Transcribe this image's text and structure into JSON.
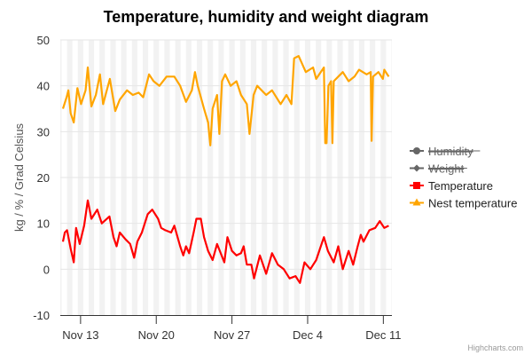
{
  "chart_data": {
    "type": "line",
    "title": "Temperature, humidity and weight diagram",
    "ylabel": "kg / % / Grad Celsius",
    "ylim": [
      -10,
      50
    ],
    "yticks": [
      "-10",
      "0",
      "10",
      "20",
      "30",
      "40",
      "50"
    ],
    "xlim": [
      "Nov 11 03:00",
      "Dec 11 19:00"
    ],
    "xticks": [
      "Nov 13",
      "Nov 20",
      "Nov 27",
      "Dec 4",
      "Dec 11"
    ],
    "grid": true,
    "plot_bands": {
      "daily_from": "18:00",
      "daily_to": "06:00",
      "color": "#f2f2f2"
    },
    "legend_position": "right",
    "credits": "Highcharts.com",
    "series": [
      {
        "name": "Humidity",
        "visible": false,
        "color": "#666666",
        "marker": "circle",
        "points": []
      },
      {
        "name": "Weight",
        "visible": false,
        "color": "#666666",
        "marker": "diamond",
        "points": []
      },
      {
        "name": "Temperature",
        "visible": true,
        "color": "#ff0000",
        "marker": "square",
        "points": [
          [
            "Nov 11 09:00",
            6
          ],
          [
            "Nov 11 13:00",
            8
          ],
          [
            "Nov 11 18:00",
            8.5
          ],
          [
            "Nov 12 02:00",
            4.5
          ],
          [
            "Nov 12 09:00",
            1.5
          ],
          [
            "Nov 12 14:00",
            9
          ],
          [
            "Nov 12 22:00",
            5.5
          ],
          [
            "Nov 13 08:00",
            9.5
          ],
          [
            "Nov 13 16:00",
            15
          ],
          [
            "Nov 14 00:00",
            11
          ],
          [
            "Nov 14 13:00",
            13
          ],
          [
            "Nov 14 23:00",
            10
          ],
          [
            "Nov 15 16:00",
            11.5
          ],
          [
            "Nov 16 01:00",
            7
          ],
          [
            "Nov 16 08:00",
            5
          ],
          [
            "Nov 16 15:00",
            8
          ],
          [
            "Nov 17 04:00",
            6.5
          ],
          [
            "Nov 17 14:00",
            5.5
          ],
          [
            "Nov 17 23:00",
            2.5
          ],
          [
            "Nov 18 06:00",
            6
          ],
          [
            "Nov 18 16:00",
            8
          ],
          [
            "Nov 19 05:00",
            12
          ],
          [
            "Nov 19 15:00",
            13
          ],
          [
            "Nov 20 04:00",
            11
          ],
          [
            "Nov 20 11:00",
            9
          ],
          [
            "Nov 20 20:00",
            8.5
          ],
          [
            "Nov 21 09:00",
            8
          ],
          [
            "Nov 21 16:00",
            9.5
          ],
          [
            "Nov 22 05:00",
            5
          ],
          [
            "Nov 22 12:00",
            3
          ],
          [
            "Nov 22 18:00",
            5
          ],
          [
            "Nov 23 01:00",
            3.5
          ],
          [
            "Nov 23 11:00",
            8
          ],
          [
            "Nov 23 17:00",
            11
          ],
          [
            "Nov 24 03:00",
            11
          ],
          [
            "Nov 24 10:00",
            7
          ],
          [
            "Nov 24 19:00",
            4
          ],
          [
            "Nov 25 05:00",
            2
          ],
          [
            "Nov 25 15:00",
            5.5
          ],
          [
            "Nov 26 07:00",
            1.5
          ],
          [
            "Nov 26 14:00",
            7
          ],
          [
            "Nov 27 00:00",
            4
          ],
          [
            "Nov 27 10:00",
            3
          ],
          [
            "Nov 27 20:00",
            3.5
          ],
          [
            "Nov 28 02:00",
            5
          ],
          [
            "Nov 28 09:00",
            1
          ],
          [
            "Nov 28 19:00",
            1
          ],
          [
            "Nov 29 01:00",
            -2
          ],
          [
            "Nov 29 14:00",
            3
          ],
          [
            "Nov 30 04:00",
            -1
          ],
          [
            "Nov 30 17:00",
            3.5
          ],
          [
            "Dec 1 06:00",
            1
          ],
          [
            "Dec 1 19:00",
            0
          ],
          [
            "Dec 2 08:00",
            -2
          ],
          [
            "Dec 2 21:00",
            -1.5
          ],
          [
            "Dec 3 07:00",
            -3
          ],
          [
            "Dec 3 17:00",
            1.5
          ],
          [
            "Dec 4 06:00",
            0
          ],
          [
            "Dec 4 19:00",
            2
          ],
          [
            "Dec 5 12:00",
            7
          ],
          [
            "Dec 5 21:00",
            4
          ],
          [
            "Dec 6 10:00",
            1.5
          ],
          [
            "Dec 6 20:00",
            5
          ],
          [
            "Dec 7 06:00",
            0
          ],
          [
            "Dec 7 19:00",
            4
          ],
          [
            "Dec 8 05:00",
            1
          ],
          [
            "Dec 8 15:00",
            5
          ],
          [
            "Dec 8 22:00",
            7.5
          ],
          [
            "Dec 9 04:00",
            6
          ],
          [
            "Dec 9 17:00",
            8.5
          ],
          [
            "Dec 10 06:00",
            9
          ],
          [
            "Dec 10 16:00",
            10.5
          ],
          [
            "Dec 11 02:00",
            9
          ],
          [
            "Dec 11 12:00",
            9.5
          ]
        ]
      },
      {
        "name": "Nest temperature",
        "visible": true,
        "color": "#ffa500",
        "marker": "triangle",
        "points": [
          [
            "Nov 11 09:00",
            35
          ],
          [
            "Nov 11 17:00",
            37.5
          ],
          [
            "Nov 11 21:00",
            39
          ],
          [
            "Nov 12 02:00",
            34
          ],
          [
            "Nov 12 09:00",
            32
          ],
          [
            "Nov 12 17:00",
            39.5
          ],
          [
            "Nov 13 01:00",
            36
          ],
          [
            "Nov 13 11:00",
            39
          ],
          [
            "Nov 13 16:00",
            44
          ],
          [
            "Nov 14 00:00",
            35.5
          ],
          [
            "Nov 14 10:00",
            38
          ],
          [
            "Nov 14 19:00",
            42.5
          ],
          [
            "Nov 15 02:00",
            36
          ],
          [
            "Nov 15 17:00",
            41.5
          ],
          [
            "Nov 16 05:00",
            34.5
          ],
          [
            "Nov 16 15:00",
            37
          ],
          [
            "Nov 17 07:00",
            39
          ],
          [
            "Nov 17 20:00",
            38
          ],
          [
            "Nov 18 09:00",
            38.5
          ],
          [
            "Nov 18 19:00",
            37.5
          ],
          [
            "Nov 19 08:00",
            42.5
          ],
          [
            "Nov 19 18:00",
            41
          ],
          [
            "Nov 20 07:00",
            40
          ],
          [
            "Nov 20 23:00",
            42
          ],
          [
            "Nov 21 16:00",
            42
          ],
          [
            "Nov 22 05:00",
            40
          ],
          [
            "Nov 22 18:00",
            36.5
          ],
          [
            "Nov 23 07:00",
            39
          ],
          [
            "Nov 23 14:00",
            43
          ],
          [
            "Nov 23 20:00",
            40
          ],
          [
            "Nov 24 10:00",
            35
          ],
          [
            "Nov 24 19:00",
            32
          ],
          [
            "Nov 25 00:00",
            27
          ],
          [
            "Nov 25 05:00",
            35
          ],
          [
            "Nov 25 15:00",
            38
          ],
          [
            "Nov 25 20:00",
            29.5
          ],
          [
            "Nov 26 02:00",
            41
          ],
          [
            "Nov 26 09:00",
            42.5
          ],
          [
            "Nov 26 21:00",
            40
          ],
          [
            "Nov 27 10:00",
            41
          ],
          [
            "Nov 27 20:00",
            38
          ],
          [
            "Nov 28 09:00",
            36
          ],
          [
            "Nov 28 15:00",
            29.5
          ],
          [
            "Nov 29 00:00",
            38
          ],
          [
            "Nov 29 08:00",
            40
          ],
          [
            "Nov 30 04:00",
            38
          ],
          [
            "Nov 30 17:00",
            39
          ],
          [
            "Dec 1 12:00",
            36
          ],
          [
            "Dec 2 01:00",
            38
          ],
          [
            "Dec 2 12:00",
            36
          ],
          [
            "Dec 2 18:00",
            46
          ],
          [
            "Dec 3 04:00",
            46.5
          ],
          [
            "Dec 3 20:00",
            43
          ],
          [
            "Dec 4 12:00",
            44
          ],
          [
            "Dec 4 19:00",
            41.5
          ],
          [
            "Dec 5 12:00",
            44
          ],
          [
            "Dec 5 15:00",
            27.5
          ],
          [
            "Dec 5 18:00",
            27.5
          ],
          [
            "Dec 5 22:00",
            40
          ],
          [
            "Dec 6 04:00",
            41
          ],
          [
            "Dec 6 07:00",
            27.5
          ],
          [
            "Dec 6 10:00",
            41
          ],
          [
            "Dec 7 06:00",
            43
          ],
          [
            "Dec 7 19:00",
            41
          ],
          [
            "Dec 8 08:00",
            42
          ],
          [
            "Dec 8 18:00",
            43.5
          ],
          [
            "Dec 9 11:00",
            42.5
          ],
          [
            "Dec 9 20:00",
            43
          ],
          [
            "Dec 9 22:00",
            28
          ],
          [
            "Dec 10 01:00",
            42
          ],
          [
            "Dec 10 13:00",
            43
          ],
          [
            "Dec 10 23:00",
            41.5
          ],
          [
            "Dec 11 02:00",
            43.5
          ],
          [
            "Dec 11 12:00",
            42
          ]
        ]
      }
    ]
  }
}
